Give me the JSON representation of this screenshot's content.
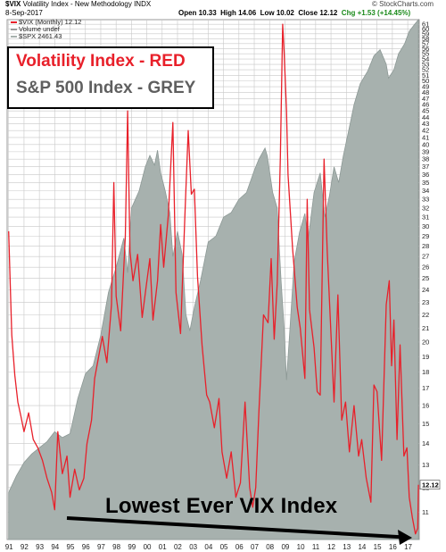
{
  "header": {
    "symbol": "$VIX",
    "title": "Volatility Index - New Methodology INDX",
    "date": "8-Sep-2017",
    "open": "Open 10.33",
    "high": "High 14.06",
    "low": "Low 10.02",
    "close": "Close 12.12",
    "change": "Chg +1.53 (+14.45%)",
    "brand": "© StockCharts.com"
  },
  "mini_legend": {
    "vix": "$VIX (Monthly) 12.12",
    "volume": "Volume undef",
    "spx": "$SPX 2461.43"
  },
  "legend_box": {
    "line1": "Volatility Index - RED",
    "line2": "S&P 500 Index - GREY"
  },
  "annotation": "Lowest Ever VIX Index",
  "current_label": "12.12",
  "colors": {
    "vix": "#e8202a",
    "spx_fill": "#a7b1ae",
    "grid": "#c8c8c8",
    "arrow": "#000000"
  },
  "chart_data": {
    "type": "line",
    "scale": "log",
    "ylim": [
      10,
      62
    ],
    "yticks": [
      11,
      12,
      13,
      14,
      15,
      16,
      17,
      18,
      19,
      20,
      21,
      22,
      23,
      24,
      25,
      26,
      27,
      28,
      29,
      30,
      31,
      32,
      33,
      34,
      35,
      36,
      37,
      38,
      39,
      40,
      41,
      42,
      43,
      44,
      45,
      46,
      47,
      48,
      49,
      50,
      51,
      52,
      53,
      54,
      55,
      56,
      57,
      58,
      59,
      60,
      61
    ],
    "xlim": [
      1990.9,
      2017.75
    ],
    "xticks": [
      {
        "year": 1991,
        "label": "91"
      },
      {
        "year": 1992,
        "label": "92"
      },
      {
        "year": 1993,
        "label": "93"
      },
      {
        "year": 1994,
        "label": "94"
      },
      {
        "year": 1995,
        "label": "95"
      },
      {
        "year": 1996,
        "label": "96"
      },
      {
        "year": 1997,
        "label": "97"
      },
      {
        "year": 1998,
        "label": "98"
      },
      {
        "year": 1999,
        "label": "99"
      },
      {
        "year": 2000,
        "label": "00"
      },
      {
        "year": 2001,
        "label": "01"
      },
      {
        "year": 2002,
        "label": "02"
      },
      {
        "year": 2003,
        "label": "03"
      },
      {
        "year": 2004,
        "label": "04"
      },
      {
        "year": 2005,
        "label": "05"
      },
      {
        "year": 2006,
        "label": "06"
      },
      {
        "year": 2007,
        "label": "07"
      },
      {
        "year": 2008,
        "label": "08"
      },
      {
        "year": 2009,
        "label": "09"
      },
      {
        "year": 2010,
        "label": "10"
      },
      {
        "year": 2011,
        "label": "11"
      },
      {
        "year": 2012,
        "label": "12"
      },
      {
        "year": 2013,
        "label": "13"
      },
      {
        "year": 2014,
        "label": "14"
      },
      {
        "year": 2015,
        "label": "15"
      },
      {
        "year": 2016,
        "label": "16"
      },
      {
        "year": 2017,
        "label": "17"
      }
    ],
    "series": [
      {
        "name": "$VIX (Monthly)",
        "kind": "line",
        "points": [
          [
            1991.0,
            29.5
          ],
          [
            1991.2,
            20.5
          ],
          [
            1991.4,
            17.8
          ],
          [
            1991.6,
            16.2
          ],
          [
            1991.8,
            15.4
          ],
          [
            1992.0,
            14.6
          ],
          [
            1992.3,
            15.6
          ],
          [
            1992.6,
            14.2
          ],
          [
            1992.9,
            13.8
          ],
          [
            1993.2,
            13.2
          ],
          [
            1993.5,
            12.4
          ],
          [
            1993.8,
            11.8
          ],
          [
            1994.0,
            11.1
          ],
          [
            1994.2,
            14.6
          ],
          [
            1994.5,
            12.6
          ],
          [
            1994.8,
            13.4
          ],
          [
            1995.0,
            11.6
          ],
          [
            1995.3,
            12.8
          ],
          [
            1995.6,
            11.9
          ],
          [
            1995.9,
            12.4
          ],
          [
            1996.1,
            14.0
          ],
          [
            1996.4,
            15.2
          ],
          [
            1996.6,
            17.6
          ],
          [
            1996.9,
            19.2
          ],
          [
            1997.1,
            20.4
          ],
          [
            1997.4,
            18.6
          ],
          [
            1997.7,
            22.8
          ],
          [
            1997.85,
            35.0
          ],
          [
            1998.0,
            23.5
          ],
          [
            1998.3,
            20.8
          ],
          [
            1998.6,
            29.0
          ],
          [
            1998.75,
            45.0
          ],
          [
            1998.9,
            27.5
          ],
          [
            1999.1,
            24.8
          ],
          [
            1999.4,
            27.2
          ],
          [
            1999.7,
            21.8
          ],
          [
            1999.95,
            24.2
          ],
          [
            2000.2,
            26.8
          ],
          [
            2000.4,
            21.6
          ],
          [
            2000.7,
            24.8
          ],
          [
            2000.9,
            30.2
          ],
          [
            2001.1,
            26.0
          ],
          [
            2001.4,
            31.2
          ],
          [
            2001.7,
            43.2
          ],
          [
            2001.9,
            23.8
          ],
          [
            2002.2,
            20.6
          ],
          [
            2002.5,
            32.0
          ],
          [
            2002.7,
            42.0
          ],
          [
            2002.9,
            33.6
          ],
          [
            2003.1,
            34.2
          ],
          [
            2003.3,
            25.2
          ],
          [
            2003.6,
            19.8
          ],
          [
            2003.9,
            16.6
          ],
          [
            2004.1,
            16.2
          ],
          [
            2004.4,
            14.8
          ],
          [
            2004.7,
            16.4
          ],
          [
            2004.9,
            13.6
          ],
          [
            2005.2,
            12.4
          ],
          [
            2005.5,
            13.6
          ],
          [
            2005.8,
            11.6
          ],
          [
            2006.1,
            12.2
          ],
          [
            2006.4,
            16.2
          ],
          [
            2006.7,
            12.0
          ],
          [
            2006.9,
            11.2
          ],
          [
            2007.1,
            12.0
          ],
          [
            2007.3,
            15.6
          ],
          [
            2007.6,
            22.0
          ],
          [
            2007.9,
            21.4
          ],
          [
            2008.1,
            26.8
          ],
          [
            2008.3,
            20.2
          ],
          [
            2008.5,
            24.6
          ],
          [
            2008.7,
            38.2
          ],
          [
            2008.85,
            61.0
          ],
          [
            2008.95,
            55.0
          ],
          [
            2009.1,
            45.0
          ],
          [
            2009.2,
            36.0
          ],
          [
            2009.5,
            27.8
          ],
          [
            2009.8,
            22.6
          ],
          [
            2010.0,
            21.0
          ],
          [
            2010.3,
            17.6
          ],
          [
            2010.45,
            33.0
          ],
          [
            2010.6,
            22.4
          ],
          [
            2010.9,
            19.6
          ],
          [
            2011.1,
            16.8
          ],
          [
            2011.3,
            16.6
          ],
          [
            2011.55,
            38.0
          ],
          [
            2011.75,
            27.6
          ],
          [
            2011.95,
            21.8
          ],
          [
            2012.2,
            16.2
          ],
          [
            2012.45,
            23.6
          ],
          [
            2012.7,
            15.2
          ],
          [
            2012.95,
            16.2
          ],
          [
            2013.2,
            13.6
          ],
          [
            2013.5,
            16.0
          ],
          [
            2013.8,
            13.4
          ],
          [
            2014.0,
            14.2
          ],
          [
            2014.3,
            12.4
          ],
          [
            2014.6,
            11.4
          ],
          [
            2014.8,
            17.2
          ],
          [
            2015.0,
            16.8
          ],
          [
            2015.3,
            13.2
          ],
          [
            2015.6,
            22.8
          ],
          [
            2015.8,
            24.8
          ],
          [
            2015.95,
            18.4
          ],
          [
            2016.1,
            21.6
          ],
          [
            2016.3,
            14.2
          ],
          [
            2016.5,
            19.8
          ],
          [
            2016.75,
            13.4
          ],
          [
            2016.95,
            13.8
          ],
          [
            2017.1,
            11.6
          ],
          [
            2017.3,
            10.8
          ],
          [
            2017.5,
            10.2
          ],
          [
            2017.65,
            10.4
          ],
          [
            2017.7,
            12.12
          ]
        ]
      },
      {
        "name": "$SPX",
        "kind": "area",
        "points": [
          [
            1991.0,
            11.8
          ],
          [
            1991.5,
            12.5
          ],
          [
            1992.0,
            13.1
          ],
          [
            1992.5,
            13.5
          ],
          [
            1993.0,
            13.8
          ],
          [
            1993.5,
            14.1
          ],
          [
            1994.0,
            14.6
          ],
          [
            1994.5,
            14.3
          ],
          [
            1995.0,
            14.5
          ],
          [
            1995.5,
            16.4
          ],
          [
            1996.0,
            17.9
          ],
          [
            1996.5,
            18.4
          ],
          [
            1997.0,
            20.5
          ],
          [
            1997.5,
            23.8
          ],
          [
            1998.0,
            26.0
          ],
          [
            1998.5,
            28.8
          ],
          [
            1998.75,
            25.5
          ],
          [
            1999.0,
            32.0
          ],
          [
            1999.5,
            34.0
          ],
          [
            1999.9,
            37.0
          ],
          [
            2000.2,
            38.5
          ],
          [
            2000.5,
            37.2
          ],
          [
            2000.7,
            39.2
          ],
          [
            2000.9,
            36.2
          ],
          [
            2001.2,
            34.0
          ],
          [
            2001.5,
            31.5
          ],
          [
            2001.7,
            27.0
          ],
          [
            2002.0,
            29.5
          ],
          [
            2002.3,
            27.2
          ],
          [
            2002.55,
            22.0
          ],
          [
            2002.8,
            20.8
          ],
          [
            2003.1,
            22.6
          ],
          [
            2003.5,
            24.8
          ],
          [
            2004.0,
            28.4
          ],
          [
            2004.5,
            29.0
          ],
          [
            2005.0,
            31.0
          ],
          [
            2005.5,
            31.5
          ],
          [
            2006.0,
            33.0
          ],
          [
            2006.5,
            33.8
          ],
          [
            2007.0,
            36.5
          ],
          [
            2007.3,
            38.0
          ],
          [
            2007.7,
            39.5
          ],
          [
            2007.85,
            38.4
          ],
          [
            2008.2,
            33.8
          ],
          [
            2008.5,
            32.0
          ],
          [
            2008.75,
            24.8
          ],
          [
            2008.95,
            21.0
          ],
          [
            2009.1,
            17.5
          ],
          [
            2009.3,
            20.5
          ],
          [
            2009.6,
            26.5
          ],
          [
            2009.95,
            29.4
          ],
          [
            2010.3,
            31.4
          ],
          [
            2010.5,
            28.6
          ],
          [
            2010.9,
            33.8
          ],
          [
            2011.3,
            36.2
          ],
          [
            2011.6,
            31.0
          ],
          [
            2011.9,
            33.4
          ],
          [
            2012.2,
            37.0
          ],
          [
            2012.5,
            35.0
          ],
          [
            2012.8,
            38.4
          ],
          [
            2013.2,
            42.5
          ],
          [
            2013.5,
            46.0
          ],
          [
            2013.9,
            49.5
          ],
          [
            2014.4,
            51.8
          ],
          [
            2014.8,
            54.6
          ],
          [
            2015.2,
            55.8
          ],
          [
            2015.6,
            53.0
          ],
          [
            2015.75,
            50.5
          ],
          [
            2016.1,
            52.0
          ],
          [
            2016.4,
            55.0
          ],
          [
            2016.8,
            57.0
          ],
          [
            2017.1,
            59.5
          ],
          [
            2017.4,
            60.8
          ],
          [
            2017.7,
            62.0
          ]
        ]
      }
    ]
  }
}
